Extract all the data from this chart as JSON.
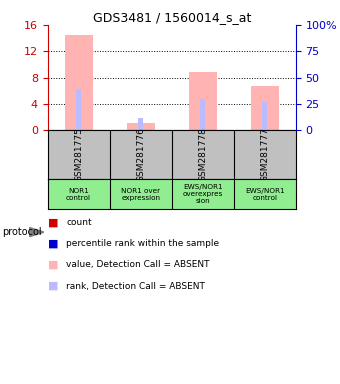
{
  "title": "GDS3481 / 1560014_s_at",
  "samples": [
    "GSM281775",
    "GSM281776",
    "GSM281778",
    "GSM281777"
  ],
  "protocol_labels": [
    [
      "NOR1",
      "control"
    ],
    [
      "NOR1 over",
      "expression"
    ],
    [
      "EWS/NOR1",
      "overexpres",
      "sion"
    ],
    [
      "EWS/NOR1",
      "control"
    ]
  ],
  "bar_values": [
    14.5,
    1.1,
    8.8,
    6.7
  ],
  "rank_values": [
    6.2,
    1.8,
    4.8,
    4.3
  ],
  "bar_color_absent": "#FFB3B3",
  "rank_color_absent": "#BBBBFF",
  "rank_color_present": "#0000CC",
  "count_color": "#CC0000",
  "left_ylim": [
    0,
    16
  ],
  "right_ylim": [
    0,
    16
  ],
  "left_yticks": [
    0,
    4,
    8,
    12,
    16
  ],
  "right_yticks": [
    0,
    4,
    8,
    12,
    16
  ],
  "right_yticklabels": [
    "0",
    "25",
    "50",
    "75",
    "100%"
  ],
  "grid_ticks": [
    4,
    8,
    12
  ],
  "bg_color": "#FFFFFF",
  "left_axis_color": "#CC0000",
  "right_axis_color": "#0000CC",
  "sample_bg": "#C0C0C0",
  "protocol_bg": "#90EE90",
  "legend_items": [
    [
      "#CC0000",
      "count"
    ],
    [
      "#0000CC",
      "percentile rank within the sample"
    ],
    [
      "#FFB3B3",
      "value, Detection Call = ABSENT"
    ],
    [
      "#BBBBFF",
      "rank, Detection Call = ABSENT"
    ]
  ]
}
